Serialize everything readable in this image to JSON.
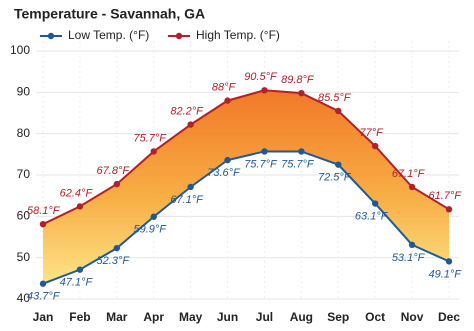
{
  "chart_data": {
    "type": "line",
    "title": "Temperature - Savannah, GA",
    "categories": [
      "Jan",
      "Feb",
      "Mar",
      "Apr",
      "May",
      "Jun",
      "Jul",
      "Aug",
      "Sep",
      "Oct",
      "Nov",
      "Dec"
    ],
    "series": [
      {
        "name": "Low Temp. (°F)",
        "color": "#1f5a96",
        "values": [
          43.7,
          47.1,
          52.3,
          59.9,
          67.1,
          73.6,
          75.7,
          75.7,
          72.5,
          63.1,
          53.1,
          49.1
        ],
        "value_labels": [
          "43.7°F",
          "47.1°F",
          "52.3°F",
          "59.9°F",
          "67.1°F",
          "73.6°F",
          "75.7°F",
          "75.7°F",
          "72.5°F",
          "63.1°F",
          "53.1°F",
          "49.1°F"
        ]
      },
      {
        "name": "High Temp. (°F)",
        "color": "#b3202a",
        "values": [
          58.1,
          62.4,
          67.8,
          75.7,
          82.2,
          88,
          90.5,
          89.8,
          85.5,
          77,
          67.1,
          61.7
        ],
        "value_labels": [
          "58.1°F",
          "62.4°F",
          "67.8°F",
          "75.7°F",
          "82.2°F",
          "88°F",
          "90.5°F",
          "89.8°F",
          "85.5°F",
          "77°F",
          "67.1°F",
          "61.7°F"
        ]
      }
    ],
    "ylim": [
      40,
      100
    ],
    "yticks": [
      40,
      50,
      60,
      70,
      80,
      90,
      100
    ],
    "grid": true
  }
}
